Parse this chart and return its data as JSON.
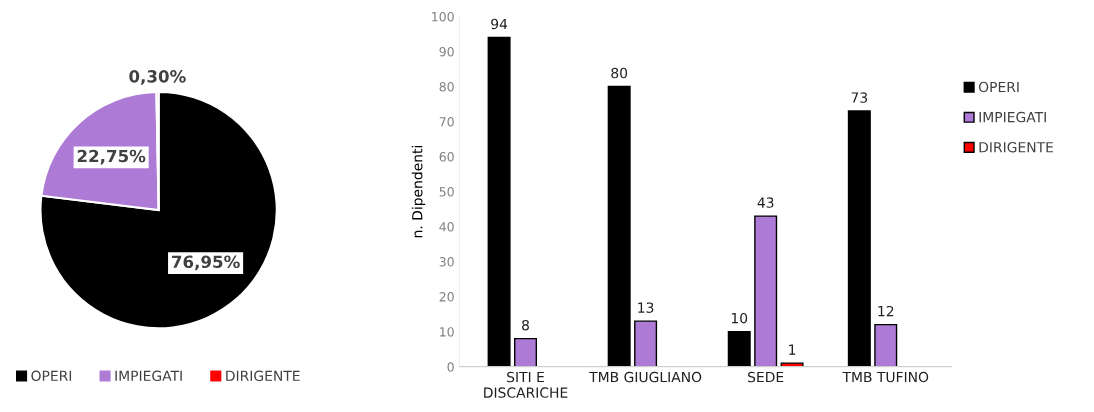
{
  "chart_data": [
    {
      "type": "pie",
      "categories": [
        "OPERI",
        "IMPIEGATI",
        "DIRIGENTE"
      ],
      "values": [
        76.95,
        22.75,
        0.3
      ],
      "colors": [
        "#000000",
        "#ad7bd6",
        "#ff0000"
      ],
      "value_labels": [
        "76,95%",
        "22,75%",
        "0,30%"
      ],
      "legend": "bottom"
    },
    {
      "type": "bar",
      "categories": [
        "SITI E\nDISCARICHE",
        "TMB GIUGLIANO",
        "SEDE",
        "TMB TUFINO"
      ],
      "ylabel": "n. Dipendenti",
      "ylim": [
        0,
        100
      ],
      "yticks": [
        0,
        10,
        20,
        30,
        40,
        50,
        60,
        70,
        80,
        90,
        100
      ],
      "series": [
        {
          "name": "OPERI",
          "color": "#000000",
          "values": [
            94,
            80,
            10,
            73
          ]
        },
        {
          "name": "IMPIEGATI",
          "color": "#ad7bd6",
          "values": [
            8,
            13,
            43,
            12
          ]
        },
        {
          "name": "DIRIGENTE",
          "color": "#ff0000",
          "values": [
            null,
            null,
            1,
            null
          ]
        }
      ],
      "data_labels": true,
      "grid": false,
      "legend": "right"
    }
  ]
}
